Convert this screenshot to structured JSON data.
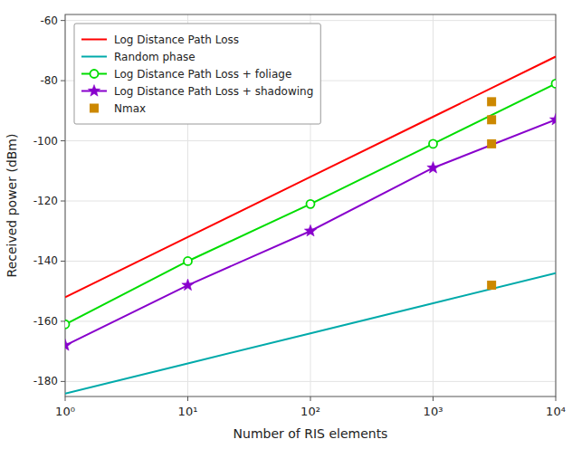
{
  "chart_data": {
    "type": "line",
    "xlabel": "Number of RIS elements",
    "ylabel": "Received power (dBm)",
    "log": "x",
    "grid": true,
    "legend": "upper left",
    "x": [
      1,
      10,
      100,
      1000,
      10000
    ],
    "xlim": [
      1,
      10000
    ],
    "xticks": [
      {
        "value": 1,
        "label": "10⁰"
      },
      {
        "value": 10,
        "label": "10¹"
      },
      {
        "value": 100,
        "label": "10²"
      },
      {
        "value": 1000,
        "label": "10³"
      },
      {
        "value": 10000,
        "label": "10⁴"
      }
    ],
    "ylim": [
      -185,
      -58
    ],
    "yticks": [
      -180,
      -160,
      -140,
      -120,
      -100,
      -80,
      -60
    ],
    "series": [
      {
        "name": "Log Distance Path Loss",
        "color": "#ff0000",
        "values": [
          -152,
          -132,
          -112,
          -92,
          -72
        ]
      },
      {
        "name": "Random phase",
        "color": "#00aaaa",
        "values": [
          -184,
          -174,
          -164,
          -154,
          -144
        ]
      },
      {
        "name": "Log Distance Path Loss + foliage",
        "color": "#00dd00",
        "marker": "circle",
        "values": [
          -161,
          -140,
          -121,
          -101,
          -81
        ]
      },
      {
        "name": "Log Distance Path Loss + shadowing",
        "color": "#8800cc",
        "marker": "star",
        "values": [
          -168,
          -148,
          -130,
          -109,
          -93
        ]
      },
      {
        "name": "Nmax",
        "type": "scatter",
        "color": "#cc8800",
        "marker": "square",
        "x": [
          3000,
          3000,
          3000,
          3000
        ],
        "values": [
          -87,
          -93,
          -101,
          -148
        ]
      }
    ]
  }
}
